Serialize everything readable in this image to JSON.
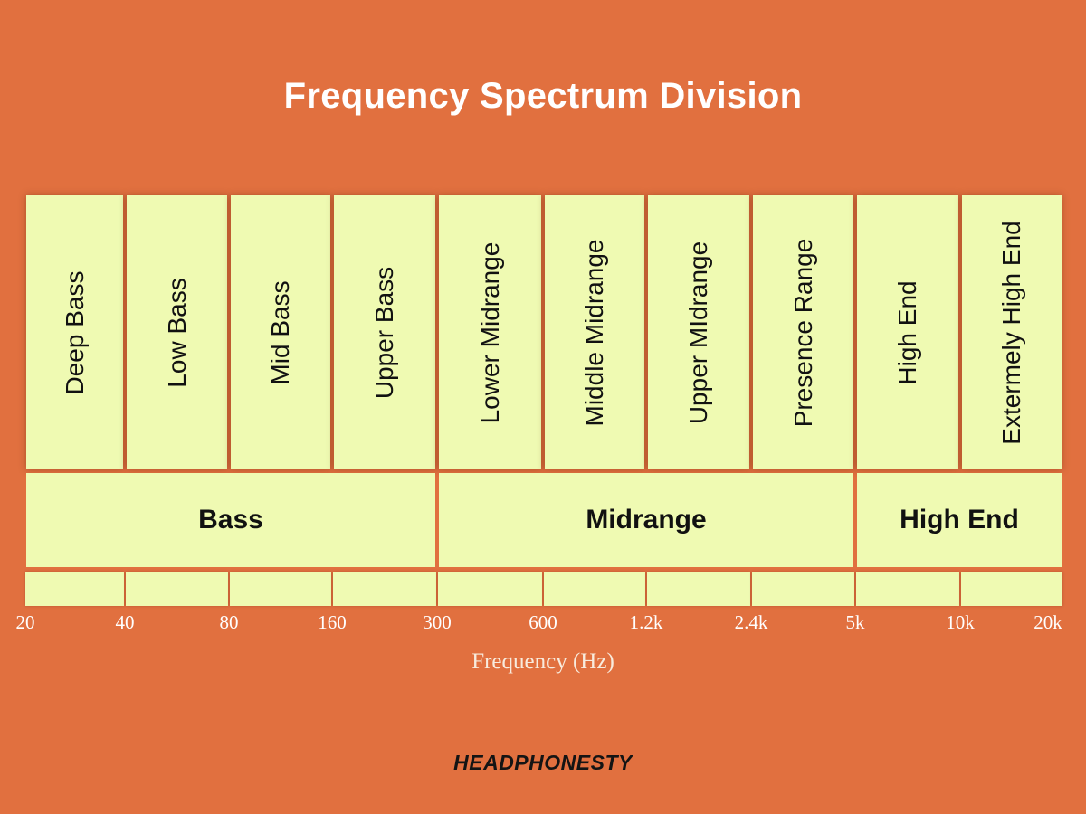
{
  "title": "Frequency Spectrum Division",
  "bands": [
    {
      "label": "Deep Bass",
      "from": "20",
      "to": "40"
    },
    {
      "label": "Low Bass",
      "from": "40",
      "to": "80"
    },
    {
      "label": "Mid Bass",
      "from": "80",
      "to": "160"
    },
    {
      "label": "Upper Bass",
      "from": "160",
      "to": "300"
    },
    {
      "label": "Lower Midrange",
      "from": "300",
      "to": "600"
    },
    {
      "label": "Middle Midrange",
      "from": "600",
      "to": "1.2k"
    },
    {
      "label": "Upper MIdrange",
      "from": "1.2k",
      "to": "2.4k"
    },
    {
      "label": "Presence Range",
      "from": "2.4k",
      "to": "5k"
    },
    {
      "label": "High End",
      "from": "5k",
      "to": "10k"
    },
    {
      "label": "Extermely High End",
      "from": "10k",
      "to": "20k"
    }
  ],
  "groups": [
    {
      "label": "Bass",
      "from": "20",
      "to": "300"
    },
    {
      "label": "Midrange",
      "from": "300",
      "to": "5k"
    },
    {
      "label": "High End",
      "from": "5k",
      "to": "20k"
    }
  ],
  "ticks": [
    "20",
    "40",
    "80",
    "160",
    "300",
    "600",
    "1.2k",
    "2.4k",
    "5k",
    "10k",
    "20k"
  ],
  "axis_label": "Frequency (Hz)",
  "logo": "HEADPHONESTY",
  "colors": {
    "background": "#E1703F",
    "panel": "#EFFAB2",
    "text_dark": "#111111",
    "text_light": "#FFFFFF"
  }
}
